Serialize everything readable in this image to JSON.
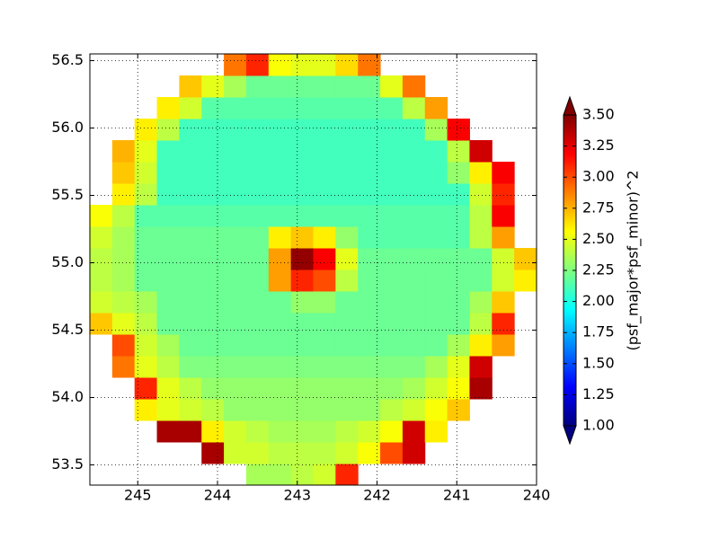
{
  "chart_data": {
    "type": "heatmap",
    "x": [
      245.46,
      245.18,
      244.9,
      244.62,
      244.34,
      244.06,
      243.78,
      243.5,
      243.22,
      242.94,
      242.66,
      242.38,
      242.1,
      241.82,
      241.54,
      241.26,
      240.98,
      240.7,
      240.42,
      240.14
    ],
    "y": [
      53.43,
      53.59,
      53.75,
      53.91,
      54.07,
      54.23,
      54.39,
      54.55,
      54.71,
      54.87,
      55.03,
      55.19,
      55.35,
      55.51,
      55.67,
      55.83,
      55.99,
      56.15,
      56.31,
      56.47
    ],
    "values": [
      [
        null,
        null,
        null,
        null,
        null,
        null,
        null,
        2.35,
        2.35,
        2.4,
        2.45,
        3.1,
        null,
        null,
        null,
        null,
        null,
        null,
        null,
        null
      ],
      [
        null,
        null,
        null,
        null,
        null,
        3.4,
        2.45,
        2.45,
        2.4,
        2.4,
        2.4,
        2.45,
        2.55,
        3.0,
        3.3,
        null,
        null,
        null,
        null,
        null
      ],
      [
        null,
        null,
        null,
        3.4,
        3.4,
        2.6,
        2.45,
        2.4,
        2.35,
        2.35,
        2.35,
        2.4,
        2.45,
        2.55,
        3.3,
        2.6,
        null,
        null,
        null,
        null
      ],
      [
        null,
        null,
        2.6,
        2.5,
        2.45,
        2.4,
        2.3,
        2.3,
        2.3,
        2.3,
        2.3,
        2.3,
        2.3,
        2.4,
        2.45,
        2.55,
        2.7,
        null,
        null,
        null
      ],
      [
        null,
        null,
        3.1,
        2.5,
        2.4,
        2.3,
        2.3,
        2.3,
        2.3,
        2.3,
        2.3,
        2.3,
        2.3,
        2.3,
        2.35,
        2.45,
        2.55,
        3.4,
        null,
        null
      ],
      [
        null,
        2.9,
        2.5,
        2.4,
        2.25,
        2.25,
        2.25,
        2.25,
        2.25,
        2.25,
        2.25,
        2.25,
        2.25,
        2.25,
        2.25,
        2.35,
        2.5,
        3.3,
        null,
        null
      ],
      [
        null,
        3.0,
        2.45,
        2.35,
        2.2,
        2.2,
        2.2,
        2.2,
        2.2,
        2.2,
        2.2,
        2.2,
        2.2,
        2.2,
        2.2,
        2.2,
        2.35,
        2.6,
        2.8,
        null
      ],
      [
        2.7,
        2.5,
        2.4,
        2.2,
        2.2,
        2.2,
        2.2,
        2.2,
        2.2,
        2.2,
        2.2,
        2.2,
        2.2,
        2.2,
        2.2,
        2.2,
        2.2,
        2.4,
        3.1,
        null
      ],
      [
        2.45,
        2.4,
        2.35,
        2.2,
        2.2,
        2.2,
        2.2,
        2.2,
        2.2,
        2.3,
        2.3,
        2.2,
        2.2,
        2.2,
        2.2,
        2.2,
        2.2,
        2.35,
        2.7,
        null
      ],
      [
        2.4,
        2.35,
        2.2,
        2.2,
        2.2,
        2.2,
        2.2,
        2.2,
        2.8,
        3.1,
        3.0,
        2.4,
        2.2,
        2.2,
        2.2,
        2.2,
        2.2,
        2.2,
        2.45,
        2.6
      ],
      [
        2.4,
        2.35,
        2.2,
        2.2,
        2.2,
        2.2,
        2.2,
        2.2,
        2.8,
        3.45,
        3.2,
        2.5,
        2.2,
        2.2,
        2.2,
        2.2,
        2.2,
        2.2,
        2.45,
        2.7
      ],
      [
        2.45,
        2.35,
        2.2,
        2.2,
        2.2,
        2.2,
        2.2,
        2.2,
        2.6,
        2.7,
        2.6,
        2.3,
        2.15,
        2.15,
        2.15,
        2.15,
        2.15,
        2.4,
        2.8,
        null
      ],
      [
        2.55,
        2.4,
        2.15,
        2.15,
        2.15,
        2.15,
        2.15,
        2.15,
        2.15,
        2.15,
        2.15,
        2.15,
        2.15,
        2.15,
        2.15,
        2.15,
        2.15,
        2.4,
        3.2,
        null
      ],
      [
        null,
        2.6,
        2.4,
        2.1,
        2.1,
        2.1,
        2.1,
        2.1,
        2.1,
        2.1,
        2.1,
        2.1,
        2.1,
        2.1,
        2.1,
        2.1,
        2.1,
        2.45,
        3.1,
        null
      ],
      [
        null,
        2.7,
        2.45,
        2.1,
        2.1,
        2.1,
        2.1,
        2.1,
        2.1,
        2.1,
        2.1,
        2.1,
        2.1,
        2.1,
        2.1,
        2.1,
        2.3,
        2.6,
        3.2,
        null
      ],
      [
        null,
        2.75,
        2.5,
        2.1,
        2.1,
        2.1,
        2.1,
        2.1,
        2.1,
        2.1,
        2.1,
        2.1,
        2.1,
        2.1,
        2.1,
        2.1,
        2.4,
        3.3,
        null,
        null
      ],
      [
        null,
        null,
        2.6,
        2.4,
        2.1,
        2.1,
        2.1,
        2.1,
        2.1,
        2.1,
        2.1,
        2.1,
        2.1,
        2.1,
        2.1,
        2.35,
        3.2,
        null,
        null,
        null
      ],
      [
        null,
        null,
        null,
        2.6,
        2.45,
        2.15,
        2.15,
        2.15,
        2.15,
        2.15,
        2.15,
        2.15,
        2.15,
        2.15,
        2.4,
        2.8,
        null,
        null,
        null,
        null
      ],
      [
        null,
        null,
        null,
        null,
        2.7,
        2.5,
        2.35,
        2.2,
        2.2,
        2.2,
        2.2,
        2.2,
        2.2,
        2.5,
        2.9,
        null,
        null,
        null,
        null,
        null
      ],
      [
        null,
        null,
        null,
        null,
        null,
        null,
        2.9,
        3.1,
        2.55,
        2.5,
        2.5,
        2.65,
        2.9,
        null,
        null,
        null,
        null,
        null,
        null,
        null
      ]
    ],
    "xlim": [
      245.6,
      240
    ],
    "ylim": [
      53.35,
      56.55
    ],
    "xticks": [
      245,
      244,
      243,
      242,
      241,
      240
    ],
    "yticks": [
      53.5,
      {
        "value": 54,
        "label": "54.0"
      },
      54.5,
      {
        "value": 55,
        "label": "55.0"
      },
      55.5,
      {
        "value": 56,
        "label": "56.0"
      },
      56.5
    ],
    "grid": true,
    "colorbar": {
      "label": "(psf_major*psf_minor)^2",
      "colormap": "jet",
      "clim": [
        1,
        3.5
      ],
      "extend": "both",
      "ticks": [
        {
          "value": 1,
          "label": "1.00"
        },
        {
          "value": 1.25,
          "label": "1.25"
        },
        {
          "value": 1.5,
          "label": "1.50"
        },
        {
          "value": 1.75,
          "label": "1.75"
        },
        {
          "value": 2,
          "label": "2.00"
        },
        {
          "value": 2.25,
          "label": "2.25"
        },
        {
          "value": 2.5,
          "label": "2.50"
        },
        {
          "value": 2.75,
          "label": "2.75"
        },
        {
          "value": 3,
          "label": "3.00"
        },
        {
          "value": 3.25,
          "label": "3.25"
        },
        {
          "value": 3.5,
          "label": "3.50"
        }
      ]
    }
  }
}
